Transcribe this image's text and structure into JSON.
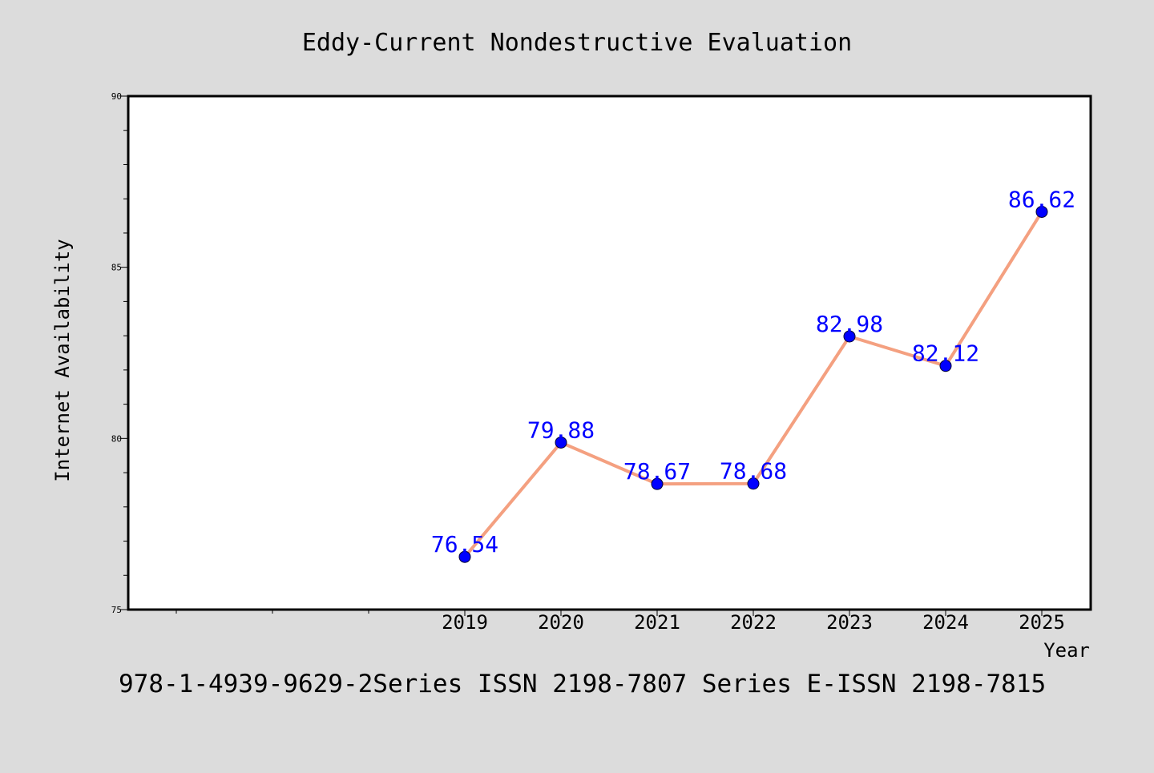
{
  "chart_data": {
    "type": "line",
    "title": "Eddy-Current Nondestructive Evaluation",
    "xlabel": "Year",
    "ylabel": "Internet Availability",
    "footer": "978-1-4939-9629-2Series ISSN 2198-7807 Series E-ISSN 2198-7815",
    "x": [
      "2019",
      "2020",
      "2021",
      "2022",
      "2023",
      "2024",
      "2025"
    ],
    "series": [
      {
        "values": [
          76.54,
          79.88,
          78.67,
          78.68,
          82.98,
          82.12,
          86.62
        ],
        "labels": [
          "76.54",
          "79.88",
          "78.67",
          "78.68",
          "82.98",
          "82.12",
          "86.62"
        ]
      }
    ],
    "ylim": [
      75,
      90
    ],
    "yticks": [
      "75",
      "80",
      "85",
      "90"
    ],
    "grid": false,
    "colors": {
      "background": "#dcdcdc",
      "plot_background": "#ffffff",
      "line": "#f4a080",
      "marker": "#0000ff",
      "data_label": "#0000ff",
      "text": "#000000"
    }
  }
}
